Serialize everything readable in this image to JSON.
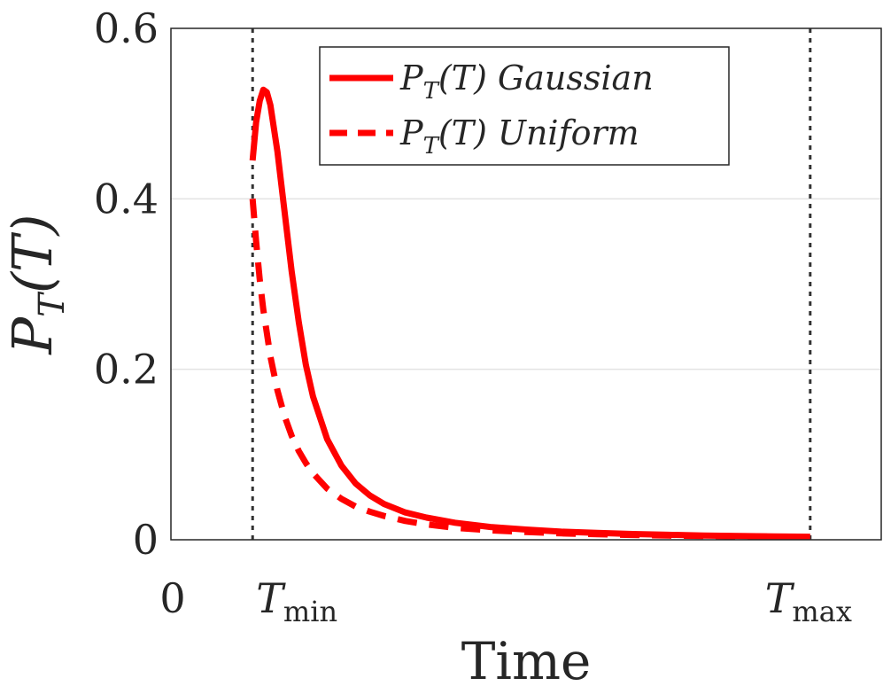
{
  "chart_data": {
    "type": "line",
    "xlabel": "Time",
    "ylabel": {
      "base": "P",
      "sub": "T",
      "arg": "(T)"
    },
    "ylim": [
      0,
      0.6
    ],
    "yticks": [
      {
        "value": 0,
        "label": "0"
      },
      {
        "value": 0.2,
        "label": "0.2"
      },
      {
        "value": 0.4,
        "label": "0.4"
      },
      {
        "value": 0.6,
        "label": "0.6"
      }
    ],
    "xlim": [
      0,
      1
    ],
    "xticks": [
      {
        "value": 0,
        "label": "0"
      },
      {
        "value": 0.115,
        "base": "T",
        "sub": "min"
      },
      {
        "value": 0.9,
        "base": "T",
        "sub": "max"
      }
    ],
    "vlines": [
      {
        "x": 0.115,
        "style": "dotted"
      },
      {
        "x": 0.9,
        "style": "dotted"
      }
    ],
    "grid": {
      "y": true,
      "x": false
    },
    "legend_position": "top-right",
    "series": [
      {
        "name": {
          "base": "P",
          "sub": "T",
          "arg": "(T)",
          "text": "Gaussian"
        },
        "style": "solid",
        "color": "#ff0000",
        "x": [
          0.115,
          0.12,
          0.125,
          0.13,
          0.135,
          0.14,
          0.15,
          0.16,
          0.17,
          0.18,
          0.19,
          0.2,
          0.22,
          0.24,
          0.26,
          0.28,
          0.3,
          0.33,
          0.36,
          0.4,
          0.45,
          0.5,
          0.55,
          0.6,
          0.65,
          0.7,
          0.75,
          0.8,
          0.85,
          0.9
        ],
        "y": [
          0.445,
          0.49,
          0.515,
          0.528,
          0.525,
          0.51,
          0.455,
          0.385,
          0.315,
          0.255,
          0.205,
          0.168,
          0.118,
          0.087,
          0.066,
          0.052,
          0.042,
          0.032,
          0.026,
          0.02,
          0.015,
          0.012,
          0.0095,
          0.008,
          0.0068,
          0.0058,
          0.005,
          0.0044,
          0.0039,
          0.0035
        ]
      },
      {
        "name": {
          "base": "P",
          "sub": "T",
          "arg": "(T)",
          "text": "Uniform"
        },
        "style": "dashed",
        "color": "#ff0000",
        "x": [
          0.115,
          0.12,
          0.125,
          0.13,
          0.14,
          0.15,
          0.16,
          0.17,
          0.18,
          0.19,
          0.2,
          0.22,
          0.24,
          0.26,
          0.28,
          0.3,
          0.33,
          0.36,
          0.4,
          0.45,
          0.5,
          0.55,
          0.6,
          0.65,
          0.7,
          0.75,
          0.8,
          0.85,
          0.9
        ],
        "y": [
          0.4,
          0.35,
          0.305,
          0.27,
          0.215,
          0.175,
          0.145,
          0.122,
          0.104,
          0.09,
          0.078,
          0.06,
          0.048,
          0.039,
          0.033,
          0.028,
          0.022,
          0.018,
          0.014,
          0.011,
          0.009,
          0.0075,
          0.0064,
          0.0056,
          0.0049,
          0.0044,
          0.004,
          0.0036,
          0.0033
        ]
      }
    ]
  }
}
